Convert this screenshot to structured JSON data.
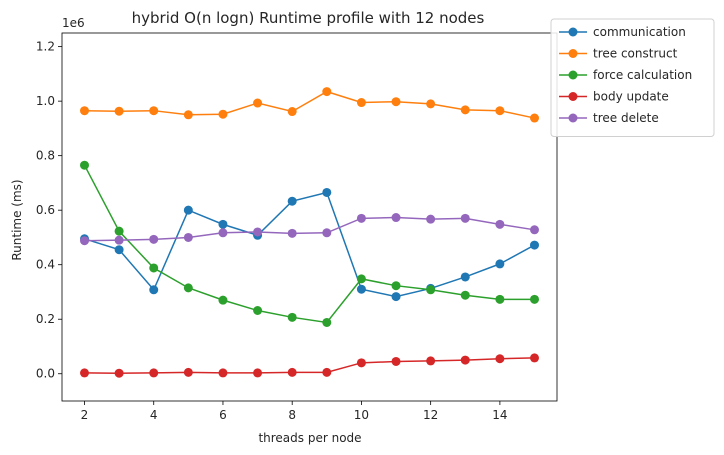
{
  "chart_data": {
    "type": "line",
    "title": "hybrid O(n logn) Runtime profile with 12 nodes",
    "xlabel": "threads per node",
    "ylabel": "Runtime (ms)",
    "y_offset_label": "1e6",
    "xlim": [
      1.35,
      15.65
    ],
    "ylim": [
      -100000,
      1250000
    ],
    "x_ticks": [
      2,
      4,
      6,
      8,
      10,
      12,
      14
    ],
    "x_tick_labels": [
      "2",
      "4",
      "6",
      "8",
      "10",
      "12",
      "14"
    ],
    "y_ticks": [
      0,
      200000,
      400000,
      600000,
      800000,
      1000000,
      1200000
    ],
    "y_tick_labels": [
      "0.0",
      "0.2",
      "0.4",
      "0.6",
      "0.8",
      "1.0",
      "1.2"
    ],
    "grid": false,
    "legend_position": "upper-right-outside",
    "x": [
      2,
      3,
      4,
      5,
      6,
      7,
      8,
      9,
      10,
      11,
      12,
      13,
      14,
      15
    ],
    "series": [
      {
        "name": "communication",
        "color": "#1f77b4",
        "values": [
          495000,
          455000,
          308000,
          600000,
          548000,
          508000,
          633000,
          665000,
          310000,
          283000,
          313000,
          355000,
          403000,
          472000
        ]
      },
      {
        "name": "tree construct",
        "color": "#ff7f0e",
        "values": [
          965000,
          963000,
          965000,
          950000,
          952000,
          993000,
          962000,
          1035000,
          995000,
          998000,
          990000,
          968000,
          965000,
          938000
        ]
      },
      {
        "name": "force calculation",
        "color": "#2ca02c",
        "values": [
          765000,
          523000,
          388000,
          315000,
          270000,
          232000,
          207000,
          188000,
          348000,
          323000,
          308000,
          288000,
          273000,
          273000
        ]
      },
      {
        "name": "body update",
        "color": "#d62728",
        "values": [
          3000,
          2000,
          3000,
          5000,
          3000,
          3000,
          5000,
          5000,
          40000,
          45000,
          47000,
          50000,
          55000,
          58000
        ]
      },
      {
        "name": "tree delete",
        "color": "#9467bd",
        "values": [
          488000,
          490000,
          493000,
          500000,
          517000,
          520000,
          515000,
          517000,
          570000,
          573000,
          567000,
          570000,
          548000,
          528000
        ]
      }
    ]
  }
}
